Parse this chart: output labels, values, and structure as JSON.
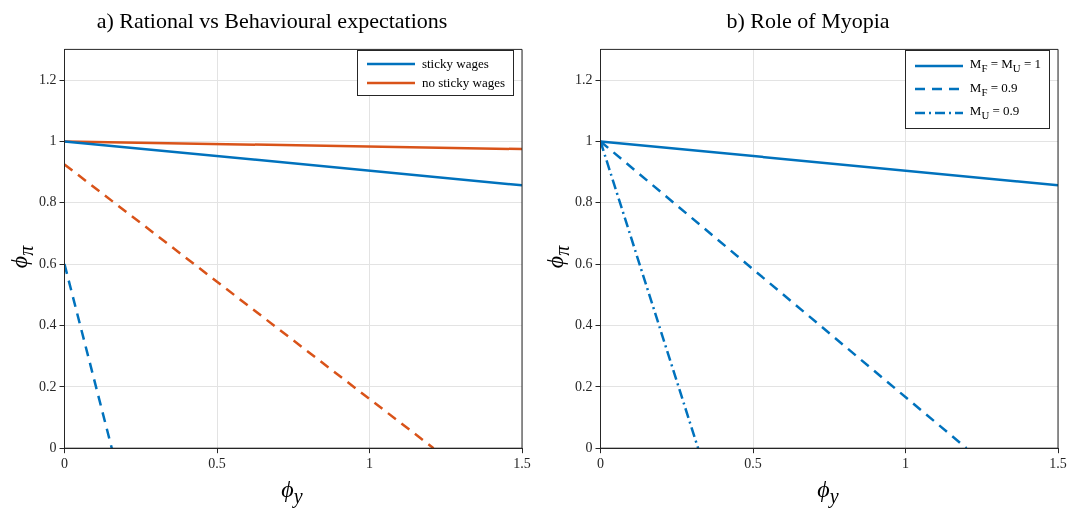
{
  "chart_data": [
    {
      "type": "line",
      "title": "a) Rational vs Behavioural expectations",
      "xlabel": "ϕ$_{y}$",
      "ylabel": "ϕ$_{π}$",
      "xlim": [
        0,
        1.5
      ],
      "xticks": [
        0,
        0.5,
        1,
        1.5
      ],
      "ylim": [
        0,
        1.3
      ],
      "yticks": [
        0,
        0.2,
        0.4,
        0.6,
        0.8,
        1,
        1.2
      ],
      "grid": true,
      "legend": "top right",
      "series": [
        {
          "name": "sticky wages",
          "color": "#0072bd",
          "x": [
            0,
            1.5
          ],
          "values": [
            1,
            0.857
          ],
          "line_style": "solid"
        },
        {
          "name": "no sticky wages",
          "color": "#d95319",
          "x": [
            0,
            1.5
          ],
          "values": [
            1,
            0.975
          ],
          "line_style": "solid"
        },
        {
          "color": "#d95319",
          "x": [
            0,
            1.21
          ],
          "values": [
            0.925,
            0
          ],
          "line_style": "dashed"
        },
        {
          "color": "#0072bd",
          "x": [
            0,
            0.155
          ],
          "values": [
            0.6,
            0
          ],
          "line_style": "dashed"
        }
      ]
    },
    {
      "type": "line",
      "title": "b) Role of Myopia",
      "xlabel": "ϕ$_{y}$",
      "ylabel": "ϕ$_{π}$",
      "xlim": [
        0,
        1.5
      ],
      "xticks": [
        0,
        0.5,
        1,
        1.5
      ],
      "ylim": [
        0,
        1.3
      ],
      "yticks": [
        0,
        0.2,
        0.4,
        0.6,
        0.8,
        1,
        1.2
      ],
      "grid": true,
      "legend": "top right",
      "series": [
        {
          "name": "M$_{F}$ = M$_{U}$ = 1",
          "color": "#0072bd",
          "x": [
            0,
            1.5
          ],
          "values": [
            1,
            0.857
          ],
          "line_style": "solid"
        },
        {
          "name": "M$_{F}$ = 0.9",
          "color": "#0072bd",
          "x": [
            0,
            1.2
          ],
          "values": [
            1,
            0
          ],
          "line_style": "dashed"
        },
        {
          "name": "M$_{U}$ = 0.9",
          "color": "#0072bd",
          "x": [
            0,
            0.32
          ],
          "values": [
            1,
            0
          ],
          "line_style": "dashdot"
        }
      ]
    }
  ]
}
